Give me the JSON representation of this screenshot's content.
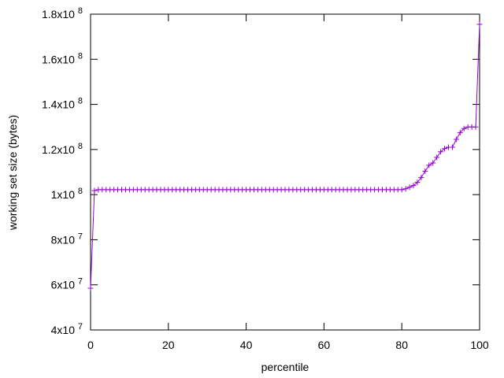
{
  "chart_data": {
    "type": "line",
    "xlabel": "percentile",
    "ylabel": "working set size (bytes)",
    "xlim": [
      0,
      100
    ],
    "ylim": [
      40000000,
      180000000
    ],
    "x_ticks": [
      {
        "value": 0,
        "label": "0"
      },
      {
        "value": 20,
        "label": "20"
      },
      {
        "value": 40,
        "label": "40"
      },
      {
        "value": 60,
        "label": "60"
      },
      {
        "value": 80,
        "label": "80"
      },
      {
        "value": 100,
        "label": "100"
      }
    ],
    "y_ticks": [
      {
        "value": 40000000,
        "mantissa": "4x10",
        "exp": "7"
      },
      {
        "value": 60000000,
        "mantissa": "6x10",
        "exp": "7"
      },
      {
        "value": 80000000,
        "mantissa": "8x10",
        "exp": "7"
      },
      {
        "value": 100000000,
        "mantissa": "1x10",
        "exp": "8"
      },
      {
        "value": 120000000,
        "mantissa": "1.2x10",
        "exp": "8"
      },
      {
        "value": 140000000,
        "mantissa": "1.4x10",
        "exp": "8"
      },
      {
        "value": 160000000,
        "mantissa": "1.6x10",
        "exp": "8"
      },
      {
        "value": 180000000,
        "mantissa": "1.8x10",
        "exp": "8"
      }
    ],
    "grid": false,
    "series": [
      {
        "color": "#9400d3",
        "marker": "plus",
        "x": [
          0,
          1,
          2,
          3,
          4,
          5,
          6,
          7,
          8,
          9,
          10,
          11,
          12,
          13,
          14,
          15,
          16,
          17,
          18,
          19,
          20,
          21,
          22,
          23,
          24,
          25,
          26,
          27,
          28,
          29,
          30,
          31,
          32,
          33,
          34,
          35,
          36,
          37,
          38,
          39,
          40,
          41,
          42,
          43,
          44,
          45,
          46,
          47,
          48,
          49,
          50,
          51,
          52,
          53,
          54,
          55,
          56,
          57,
          58,
          59,
          60,
          61,
          62,
          63,
          64,
          65,
          66,
          67,
          68,
          69,
          70,
          71,
          72,
          73,
          74,
          75,
          76,
          77,
          78,
          79,
          80,
          81,
          82,
          83,
          84,
          85,
          86,
          87,
          88,
          89,
          90,
          91,
          92,
          93,
          94,
          95,
          96,
          97,
          98,
          99,
          100
        ],
        "y": [
          58500000,
          101800000,
          102200000,
          102200000,
          102200000,
          102200000,
          102200000,
          102200000,
          102200000,
          102200000,
          102200000,
          102200000,
          102200000,
          102200000,
          102200000,
          102200000,
          102200000,
          102200000,
          102200000,
          102200000,
          102200000,
          102200000,
          102200000,
          102200000,
          102200000,
          102200000,
          102200000,
          102200000,
          102200000,
          102200000,
          102200000,
          102200000,
          102200000,
          102200000,
          102200000,
          102200000,
          102200000,
          102200000,
          102200000,
          102200000,
          102200000,
          102200000,
          102200000,
          102200000,
          102200000,
          102200000,
          102200000,
          102200000,
          102200000,
          102200000,
          102200000,
          102200000,
          102200000,
          102200000,
          102200000,
          102200000,
          102200000,
          102200000,
          102200000,
          102200000,
          102200000,
          102200000,
          102200000,
          102200000,
          102200000,
          102200000,
          102200000,
          102200000,
          102200000,
          102200000,
          102200000,
          102200000,
          102200000,
          102200000,
          102200000,
          102200000,
          102200000,
          102200000,
          102200000,
          102200000,
          102200000,
          102600000,
          103300000,
          104000000,
          105400000,
          107600000,
          110400000,
          113000000,
          114000000,
          116500000,
          119000000,
          120400000,
          121000000,
          121000000,
          124500000,
          127500000,
          129300000,
          130000000,
          130000000,
          130000000,
          175500000
        ]
      }
    ]
  }
}
